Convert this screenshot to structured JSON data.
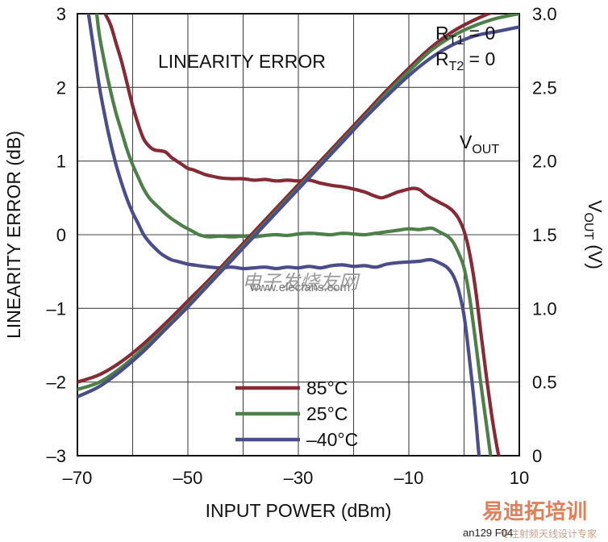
{
  "chart_data": {
    "type": "line",
    "title": "LINEARITY ERROR",
    "xlabel": "INPUT POWER (dBm)",
    "ylabel": "LINEARITY ERROR (dB)",
    "y2label": "V",
    "y2label_sub": "OUT",
    "y2label_unit": "(V)",
    "xlim": [
      -70,
      10
    ],
    "ylim": [
      -3,
      3
    ],
    "y2lim": [
      0,
      3
    ],
    "grid": true,
    "x_ticks": [
      -70,
      -50,
      -30,
      -10,
      10
    ],
    "x_tick_labels": [
      "–70",
      "–50",
      "–30",
      "–10",
      "10"
    ],
    "y_ticks": [
      -3,
      -2,
      -1,
      0,
      1,
      2,
      3
    ],
    "y_tick_labels": [
      "–3",
      "–2",
      "–1",
      "0",
      "1",
      "2",
      "3"
    ],
    "y2_ticks": [
      0,
      0.5,
      1,
      1.5,
      2,
      2.5,
      3
    ],
    "y2_tick_labels": [
      "0",
      "0.5",
      "1.0",
      "1.5",
      "2.0",
      "2.5",
      "3.0"
    ],
    "annotations": {
      "rt1": "R",
      "rt1_sub": "T1",
      "rt1_val": " = 0",
      "rt2": "R",
      "rt2_sub": "T2",
      "rt2_val": " = 0",
      "vout": "V",
      "vout_sub": "OUT"
    },
    "legend_position": "bottom-center",
    "series": [
      {
        "name": "85°C",
        "kind": "linearity_error",
        "axis": "left",
        "color": "#862a35",
        "points": [
          [
            -65,
            3
          ],
          [
            -64,
            2.85
          ],
          [
            -63,
            2.6
          ],
          [
            -62,
            2.35
          ],
          [
            -61,
            2.05
          ],
          [
            -60,
            1.75
          ],
          [
            -59,
            1.5
          ],
          [
            -58,
            1.3
          ],
          [
            -57,
            1.2
          ],
          [
            -56,
            1.15
          ],
          [
            -55,
            1.14
          ],
          [
            -54,
            1.12
          ],
          [
            -53,
            1.05
          ],
          [
            -52,
            1.0
          ],
          [
            -51,
            0.95
          ],
          [
            -50,
            0.9
          ],
          [
            -49,
            0.88
          ],
          [
            -48,
            0.85
          ],
          [
            -47,
            0.82
          ],
          [
            -46,
            0.8
          ],
          [
            -44,
            0.77
          ],
          [
            -42,
            0.76
          ],
          [
            -40,
            0.76
          ],
          [
            -38,
            0.74
          ],
          [
            -36,
            0.75
          ],
          [
            -34,
            0.73
          ],
          [
            -32,
            0.74
          ],
          [
            -30,
            0.73
          ],
          [
            -28,
            0.74
          ],
          [
            -26,
            0.7
          ],
          [
            -24,
            0.67
          ],
          [
            -22,
            0.65
          ],
          [
            -20,
            0.62
          ],
          [
            -18,
            0.58
          ],
          [
            -17,
            0.55
          ],
          [
            -16,
            0.52
          ],
          [
            -15,
            0.5
          ],
          [
            -14,
            0.52
          ],
          [
            -13,
            0.55
          ],
          [
            -12,
            0.58
          ],
          [
            -11,
            0.6
          ],
          [
            -10,
            0.62
          ],
          [
            -9,
            0.63
          ],
          [
            -8,
            0.61
          ],
          [
            -7,
            0.55
          ],
          [
            -6,
            0.5
          ],
          [
            -5,
            0.46
          ],
          [
            -4,
            0.42
          ],
          [
            -3,
            0.38
          ],
          [
            -2,
            0.32
          ],
          [
            -1,
            0.22
          ],
          [
            0,
            0.05
          ],
          [
            1,
            -0.25
          ],
          [
            2,
            -0.7
          ],
          [
            3,
            -1.3
          ],
          [
            4,
            -1.9
          ],
          [
            5,
            -2.45
          ],
          [
            6,
            -2.9
          ],
          [
            6.3,
            -3
          ]
        ]
      },
      {
        "name": "25°C",
        "kind": "linearity_error",
        "axis": "left",
        "color": "#4d7f48",
        "points": [
          [
            -66.5,
            3
          ],
          [
            -66,
            2.7
          ],
          [
            -65,
            2.3
          ],
          [
            -64,
            1.95
          ],
          [
            -63,
            1.65
          ],
          [
            -62,
            1.4
          ],
          [
            -61,
            1.15
          ],
          [
            -60,
            0.95
          ],
          [
            -59,
            0.78
          ],
          [
            -58,
            0.62
          ],
          [
            -57,
            0.5
          ],
          [
            -56,
            0.42
          ],
          [
            -55,
            0.35
          ],
          [
            -54,
            0.28
          ],
          [
            -53,
            0.22
          ],
          [
            -52,
            0.17
          ],
          [
            -51,
            0.12
          ],
          [
            -50,
            0.08
          ],
          [
            -49,
            0.04
          ],
          [
            -48,
            0.0
          ],
          [
            -47,
            -0.02
          ],
          [
            -46,
            -0.03
          ],
          [
            -44,
            -0.02
          ],
          [
            -42,
            -0.03
          ],
          [
            -40,
            -0.02
          ],
          [
            -38,
            -0.03
          ],
          [
            -36,
            -0.01
          ],
          [
            -34,
            0.0
          ],
          [
            -32,
            -0.01
          ],
          [
            -30,
            0.01
          ],
          [
            -28,
            0.02
          ],
          [
            -26,
            0.01
          ],
          [
            -24,
            0.0
          ],
          [
            -22,
            0.02
          ],
          [
            -20,
            0.01
          ],
          [
            -18,
            0.0
          ],
          [
            -16,
            0.02
          ],
          [
            -14,
            0.04
          ],
          [
            -12,
            0.06
          ],
          [
            -10,
            0.08
          ],
          [
            -8,
            0.07
          ],
          [
            -6,
            0.09
          ],
          [
            -5,
            0.06
          ],
          [
            -4,
            0.02
          ],
          [
            -3,
            -0.02
          ],
          [
            -2,
            -0.1
          ],
          [
            -1,
            -0.25
          ],
          [
            0,
            -0.45
          ],
          [
            1,
            -0.85
          ],
          [
            2,
            -1.4
          ],
          [
            3,
            -2.0
          ],
          [
            4,
            -2.55
          ],
          [
            4.8,
            -3
          ]
        ]
      },
      {
        "name": "–40°C",
        "kind": "linearity_error",
        "axis": "left",
        "color": "#4b4c8b",
        "points": [
          [
            -68,
            3
          ],
          [
            -67,
            2.5
          ],
          [
            -66,
            2.0
          ],
          [
            -65,
            1.6
          ],
          [
            -64,
            1.25
          ],
          [
            -63,
            0.95
          ],
          [
            -62,
            0.7
          ],
          [
            -61,
            0.48
          ],
          [
            -60,
            0.3
          ],
          [
            -59,
            0.15
          ],
          [
            -58,
            0.0
          ],
          [
            -57,
            -0.1
          ],
          [
            -56,
            -0.18
          ],
          [
            -55,
            -0.25
          ],
          [
            -54,
            -0.3
          ],
          [
            -53,
            -0.34
          ],
          [
            -52,
            -0.36
          ],
          [
            -51,
            -0.38
          ],
          [
            -50,
            -0.4
          ],
          [
            -48,
            -0.42
          ],
          [
            -46,
            -0.44
          ],
          [
            -44,
            -0.45
          ],
          [
            -42,
            -0.44
          ],
          [
            -40,
            -0.46
          ],
          [
            -38,
            -0.45
          ],
          [
            -36,
            -0.44
          ],
          [
            -34,
            -0.46
          ],
          [
            -32,
            -0.44
          ],
          [
            -30,
            -0.45
          ],
          [
            -28,
            -0.43
          ],
          [
            -26,
            -0.45
          ],
          [
            -24,
            -0.42
          ],
          [
            -22,
            -0.41
          ],
          [
            -20,
            -0.43
          ],
          [
            -18,
            -0.42
          ],
          [
            -16,
            -0.44
          ],
          [
            -14,
            -0.4
          ],
          [
            -12,
            -0.38
          ],
          [
            -10,
            -0.37
          ],
          [
            -8,
            -0.36
          ],
          [
            -6,
            -0.34
          ],
          [
            -4,
            -0.4
          ],
          [
            -3,
            -0.45
          ],
          [
            -2,
            -0.55
          ],
          [
            -1,
            -0.75
          ],
          [
            0,
            -1.1
          ],
          [
            1,
            -1.7
          ],
          [
            2,
            -2.4
          ],
          [
            2.7,
            -3
          ]
        ]
      },
      {
        "name": "V_OUT 85°C",
        "kind": "vout",
        "axis": "right",
        "color": "#862a35",
        "points": [
          [
            -70,
            0.5
          ],
          [
            -66,
            0.55
          ],
          [
            -62,
            0.64
          ],
          [
            -58,
            0.76
          ],
          [
            -54,
            0.9
          ],
          [
            -50,
            1.05
          ],
          [
            -46,
            1.2
          ],
          [
            -42,
            1.36
          ],
          [
            -38,
            1.52
          ],
          [
            -34,
            1.68
          ],
          [
            -30,
            1.84
          ],
          [
            -26,
            2.0
          ],
          [
            -22,
            2.16
          ],
          [
            -18,
            2.32
          ],
          [
            -14,
            2.48
          ],
          [
            -10,
            2.63
          ],
          [
            -6,
            2.77
          ],
          [
            -2,
            2.88
          ],
          [
            2,
            2.96
          ],
          [
            6,
            3.02
          ],
          [
            10,
            3.05
          ]
        ]
      },
      {
        "name": "V_OUT 25°C",
        "kind": "vout",
        "axis": "right",
        "color": "#4d7f48",
        "points": [
          [
            -70,
            0.45
          ],
          [
            -66,
            0.5
          ],
          [
            -62,
            0.6
          ],
          [
            -58,
            0.73
          ],
          [
            -54,
            0.87
          ],
          [
            -50,
            1.02
          ],
          [
            -46,
            1.18
          ],
          [
            -42,
            1.34
          ],
          [
            -38,
            1.5
          ],
          [
            -34,
            1.66
          ],
          [
            -30,
            1.82
          ],
          [
            -26,
            1.98
          ],
          [
            -22,
            2.14
          ],
          [
            -18,
            2.3
          ],
          [
            -14,
            2.46
          ],
          [
            -10,
            2.61
          ],
          [
            -6,
            2.75
          ],
          [
            -2,
            2.85
          ],
          [
            2,
            2.92
          ],
          [
            6,
            2.97
          ],
          [
            10,
            3.0
          ]
        ]
      },
      {
        "name": "V_OUT –40°C",
        "kind": "vout",
        "axis": "right",
        "color": "#4b4c8b",
        "points": [
          [
            -70,
            0.4
          ],
          [
            -66,
            0.47
          ],
          [
            -62,
            0.58
          ],
          [
            -58,
            0.71
          ],
          [
            -54,
            0.86
          ],
          [
            -50,
            1.01
          ],
          [
            -46,
            1.17
          ],
          [
            -42,
            1.33
          ],
          [
            -38,
            1.49
          ],
          [
            -34,
            1.65
          ],
          [
            -30,
            1.81
          ],
          [
            -26,
            1.97
          ],
          [
            -22,
            2.13
          ],
          [
            -18,
            2.29
          ],
          [
            -14,
            2.44
          ],
          [
            -10,
            2.58
          ],
          [
            -6,
            2.7
          ],
          [
            -2,
            2.79
          ],
          [
            2,
            2.85
          ],
          [
            6,
            2.88
          ],
          [
            10,
            2.91
          ]
        ]
      }
    ],
    "legend": [
      {
        "label": "85°C",
        "color": "#862a35"
      },
      {
        "label": "25°C",
        "color": "#4d7f48"
      },
      {
        "label": "–40°C",
        "color": "#4b4c8b"
      }
    ]
  },
  "watermark": {
    "cn_text": "电子发烧友网",
    "url": "www.elecfans.com"
  },
  "brand": {
    "name": "易迪拓培训",
    "sub": "专注射频天线设计专家"
  },
  "figure_id": "an129 F04"
}
